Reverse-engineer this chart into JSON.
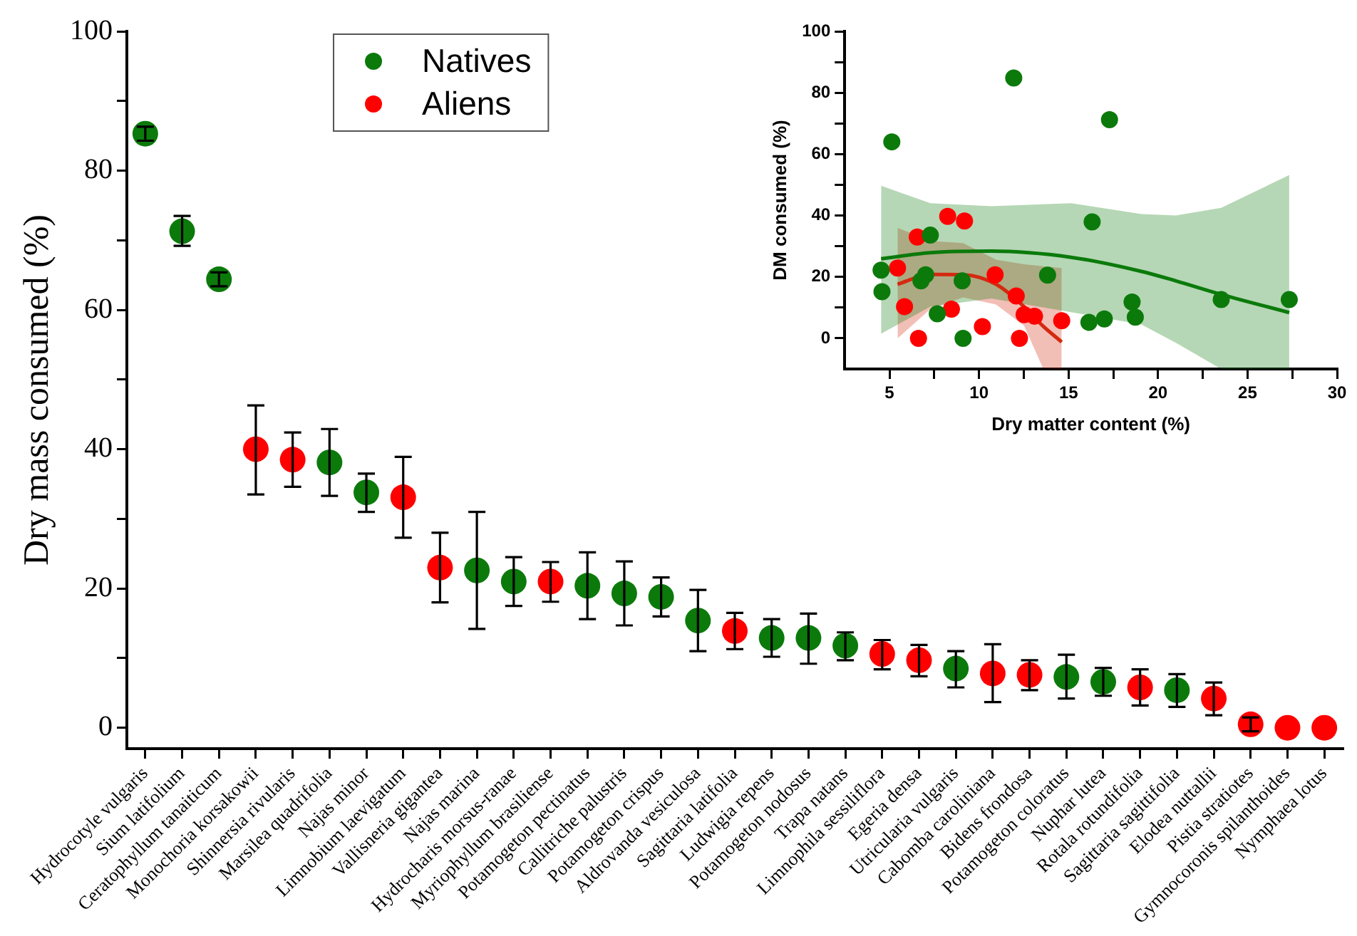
{
  "chart_data": [
    {
      "type": "scatter",
      "ylabel": "Dry mass consumed (%)",
      "categories": [
        "Hydrocotyle vulgaris",
        "Sium latifolium",
        "Ceratophyllum tanaiticum",
        "Monochoria korsakowii",
        "Shinnersia rivularis",
        "Marsilea quadrifolia",
        "Najas minor",
        "Limnobium laevigatum",
        "Vallisneria gigantea",
        "Najas marina",
        "Hydrocharis morsus-ranae",
        "Myriophyllum brasiliense",
        "Potamogeton pectinatus",
        "Callitriche palustris",
        "Potamogeton crispus",
        "Aldrovanda vesiculosa",
        "Sagittaria latifolia",
        "Ludwigia repens",
        "Potamogeton nodosus",
        "Trapa natans",
        "Limnophila sessiliflora",
        "Egeria densa",
        "Utricularia vulgaris",
        "Cabomba caroliniana",
        "Bidens frondosa",
        "Potamogeton coloratus",
        "Nuphar lutea",
        "Rotala rotundifolia",
        "Sagittaria sagittifolia",
        "Elodea nuttallii",
        "Pistia stratiotes",
        "Gymnocoronis spilanthoides",
        "Nymphaea lotus"
      ],
      "ylim": [
        -3,
        100
      ],
      "yticks": [
        0,
        {
          "value": 10,
          "label": null
        },
        20,
        {
          "value": 30,
          "label": null
        },
        40,
        {
          "value": 50,
          "label": null
        },
        60,
        {
          "value": 70,
          "label": null
        },
        80,
        {
          "value": 90,
          "label": null
        },
        100
      ],
      "legend": "top left",
      "marker": "circle",
      "series": [
        {
          "name": "Natives",
          "color": "#0b7a0b",
          "values": [
            85.3,
            71.3,
            64.4,
            null,
            null,
            38.1,
            33.8,
            null,
            null,
            22.6,
            21.0,
            null,
            20.4,
            19.3,
            18.8,
            15.4,
            null,
            12.9,
            12.9,
            11.8,
            null,
            null,
            8.5,
            null,
            null,
            7.3,
            6.6,
            null,
            5.4,
            null,
            null,
            null,
            null
          ],
          "errors": [
            1,
            [
              69.2,
              73.5
            ],
            1,
            null,
            null,
            [
              33.3,
              42.9
            ],
            [
              31.0,
              36.5
            ],
            null,
            null,
            [
              14.2,
              31.0
            ],
            [
              17.5,
              24.5
            ],
            null,
            [
              15.6,
              25.2
            ],
            [
              14.7,
              23.9
            ],
            [
              16.0,
              21.6
            ],
            [
              11.0,
              19.8
            ],
            null,
            [
              10.2,
              15.6
            ],
            [
              9.2,
              16.4
            ],
            [
              9.7,
              13.7
            ],
            null,
            null,
            [
              5.8,
              11.0
            ],
            null,
            null,
            [
              4.2,
              10.5
            ],
            [
              4.6,
              8.6
            ],
            null,
            [
              3.0,
              7.7
            ],
            null,
            null,
            null,
            null
          ]
        },
        {
          "name": "Aliens",
          "color": "#ff0000",
          "values": [
            null,
            null,
            null,
            40.0,
            38.5,
            null,
            null,
            33.1,
            23.0,
            null,
            null,
            21.0,
            null,
            null,
            null,
            null,
            13.9,
            null,
            null,
            null,
            10.6,
            9.7,
            null,
            7.8,
            7.6,
            null,
            null,
            5.8,
            null,
            4.2,
            0.5,
            0,
            0
          ],
          "errors": [
            null,
            null,
            null,
            [
              33.5,
              46.3
            ],
            [
              34.6,
              42.4
            ],
            null,
            null,
            [
              27.3,
              38.9
            ],
            [
              18.0,
              28.0
            ],
            null,
            null,
            [
              18.1,
              23.8
            ],
            null,
            null,
            null,
            null,
            [
              11.3,
              16.5
            ],
            null,
            null,
            null,
            [
              8.4,
              12.6
            ],
            [
              7.4,
              11.9
            ],
            null,
            [
              3.7,
              12.0
            ],
            [
              5.4,
              9.7
            ],
            null,
            null,
            [
              3.2,
              8.4
            ],
            null,
            [
              1.8,
              6.5
            ],
            1,
            null,
            null
          ]
        }
      ]
    },
    {
      "type": "scatter",
      "xlabel": "Dry matter content (%)",
      "ylabel": "DM consumed (%)",
      "xlim": [
        2.5,
        30
      ],
      "xticks": [
        5,
        {
          "value": 7.5,
          "label": null
        },
        10,
        {
          "value": 12.5,
          "label": null
        },
        15,
        {
          "value": 17.5,
          "label": null
        },
        20,
        {
          "value": 22.5,
          "label": null
        },
        25,
        {
          "value": 27.5,
          "label": null
        },
        30
      ],
      "ylim": [
        -10,
        100
      ],
      "yticks": [
        0,
        {
          "value": 10,
          "label": null
        },
        20,
        {
          "value": 30,
          "label": null
        },
        40,
        {
          "value": 50,
          "label": null
        },
        60,
        {
          "value": 70,
          "label": null
        },
        80,
        {
          "value": 90,
          "label": null
        },
        100
      ],
      "marker": "circle",
      "series": [
        {
          "type": "line",
          "marker": "none",
          "color": "#0b7a0b",
          "x": [
            4.53,
            7.28,
            10.69,
            15.14,
            19.07,
            21.0,
            23.53,
            27.33
          ],
          "values": [
            25.9,
            27.9,
            28.4,
            26.4,
            21.8,
            18.7,
            14.3,
            8.4
          ],
          "lower": [
            1.5,
            10.3,
            13.0,
            8.5,
            4.5,
            -1.5,
            -10,
            -10
          ],
          "upper": [
            49.7,
            44.0,
            43.0,
            44.0,
            40.5,
            40.0,
            42.5,
            53.2
          ]
        },
        {
          "type": "line",
          "marker": "none",
          "color": "#d42a10",
          "x": [
            5.45,
            7.28,
            9.11,
            10.95,
            12.52,
            13.57,
            14.62
          ],
          "values": [
            17.6,
            20.8,
            20.7,
            17.6,
            10.3,
            4.0,
            -1.2
          ],
          "lower": [
            0,
            9.5,
            13.3,
            11.0,
            4.1,
            -9.7,
            -10
          ],
          "upper": [
            36.0,
            31.7,
            31.0,
            25.6,
            24.1,
            23.5,
            22.9
          ]
        },
        {
          "color": "#0b7a0b",
          "x": [
            4.53,
            4.58,
            5.13,
            7.28,
            6.76,
            7.02,
            7.67,
            9.06,
            9.11,
            11.94,
            13.83,
            16.32,
            16.14,
            17.0,
            17.29,
            18.55,
            18.73,
            23.53,
            27.33
          ],
          "values": [
            22.2,
            15.2,
            64.0,
            33.6,
            18.7,
            20.7,
            8.0,
            18.7,
            0,
            84.8,
            20.6,
            37.9,
            5.2,
            6.3,
            71.2,
            11.8,
            6.9,
            12.6,
            12.6
          ]
        },
        {
          "color": "#ff0000",
          "x": [
            5.45,
            5.84,
            6.55,
            6.62,
            8.25,
            8.46,
            9.19,
            10.19,
            10.9,
            12.08,
            12.26,
            12.52,
            13.1,
            14.62
          ],
          "values": [
            22.9,
            10.3,
            33.0,
            0,
            39.7,
            9.5,
            38.2,
            3.8,
            20.7,
            13.8,
            0,
            7.7,
            7.2,
            5.7
          ]
        }
      ]
    }
  ]
}
